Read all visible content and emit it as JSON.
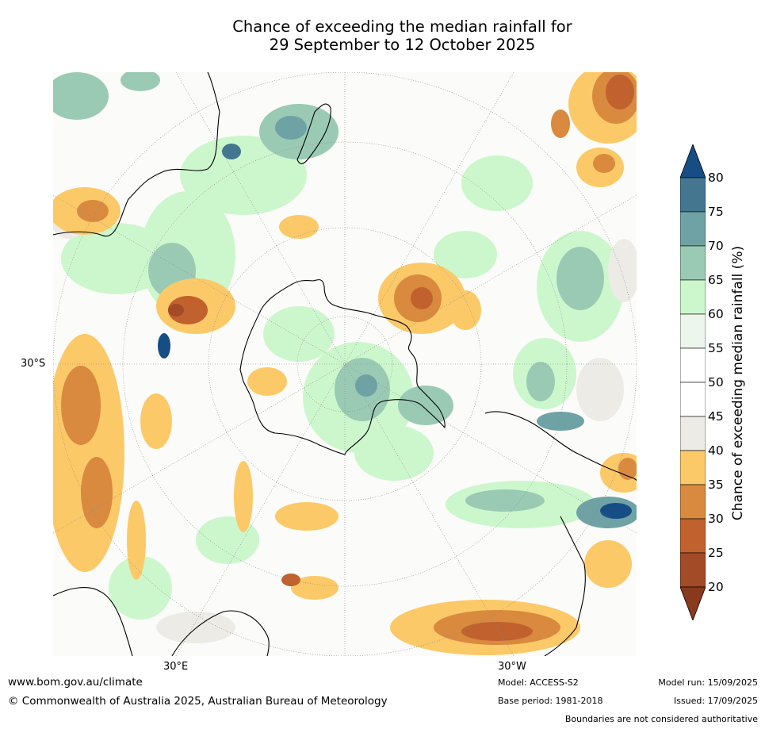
{
  "title_line1": "Chance of exceeding the median rainfall for",
  "title_line2": "29 September to 12 October 2025",
  "axis_labels": {
    "lat_left": "30°S",
    "lon_bottom_left": "30°E",
    "lon_bottom_right": "30°W"
  },
  "colorbar": {
    "title": "Chance of exceeding median rainfall (%)",
    "ticks": [
      "20",
      "25",
      "30",
      "35",
      "40",
      "45",
      "50",
      "55",
      "60",
      "65",
      "70",
      "75",
      "80"
    ],
    "colors": [
      "#8a3a1c",
      "#a34a26",
      "#c0612e",
      "#d98a3f",
      "#fcc968",
      "#ecebe6",
      "#ffffff",
      "#ffffff",
      "#ecf6ec",
      "#ccf7cc",
      "#9bcab4",
      "#6fa2a4",
      "#44768f",
      "#174d85"
    ]
  },
  "footer": {
    "website": "www.bom.gov.au/climate",
    "copyright": "© Commonwealth of Australia 2025, Australian Bureau of Meteorology",
    "model": "Model: ACCESS-S2",
    "base_period": "Base period: 1981-2018",
    "model_run": "Model run: 15/09/2025",
    "issued": "Issued: 17/09/2025",
    "disclaimer": "Boundaries are not considered authoritative"
  }
}
